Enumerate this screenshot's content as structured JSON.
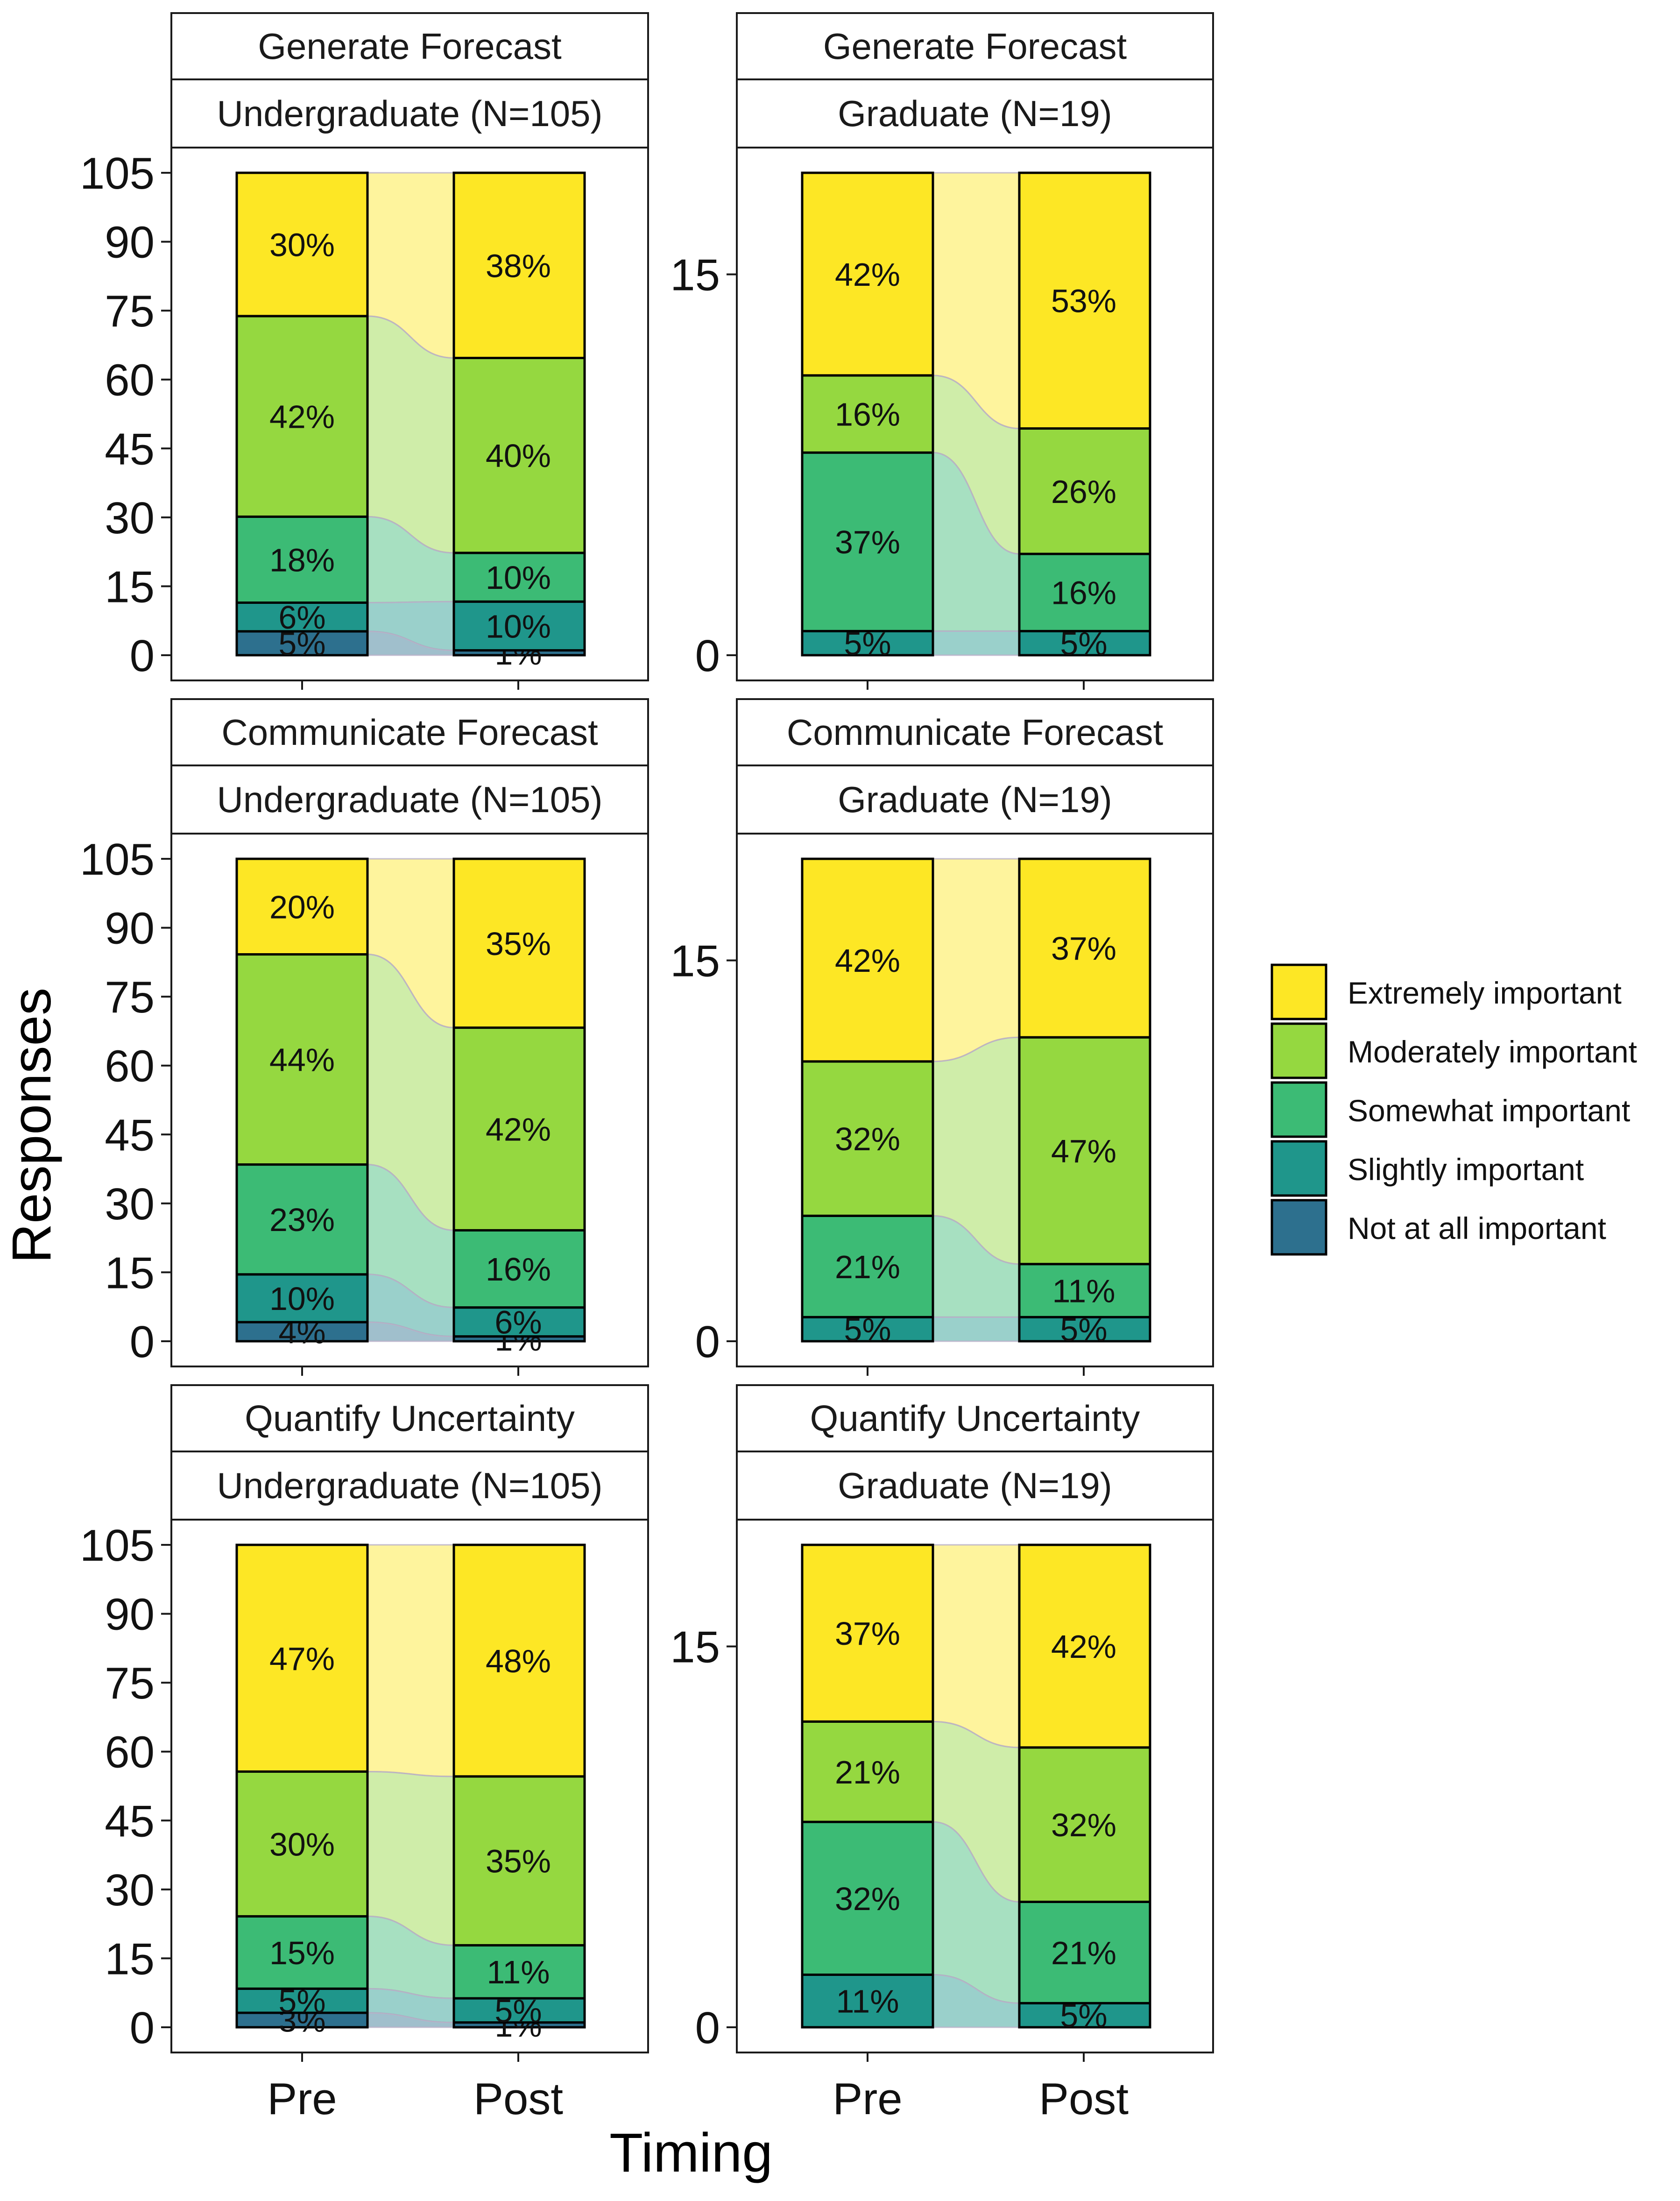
{
  "chart_data": {
    "type": "alluvial",
    "ylabel": "Responses",
    "xlabel": "Timing",
    "x_categories": [
      "Pre",
      "Post"
    ],
    "legend": {
      "placement": "right",
      "entries": [
        {
          "key": "extremely",
          "label": "Extremely important",
          "color": "#FDE725"
        },
        {
          "key": "moderately",
          "label": "Moderately important",
          "color": "#95D840"
        },
        {
          "key": "somewhat",
          "label": "Somewhat important",
          "color": "#3CBB75"
        },
        {
          "key": "slightly",
          "label": "Slightly important",
          "color": "#1F968B"
        },
        {
          "key": "notatall",
          "label": "Not at all important",
          "color": "#2D708E"
        }
      ]
    },
    "panels": [
      {
        "id": "gen-ug",
        "title": "Generate Forecast",
        "subtitle": "Undergraduate (N=105)",
        "n": 105,
        "yticks": [
          0,
          15,
          30,
          45,
          60,
          75,
          90,
          105
        ],
        "pre": [
          {
            "cat": "notatall",
            "pct": "5%"
          },
          {
            "cat": "slightly",
            "pct": "6%"
          },
          {
            "cat": "somewhat",
            "pct": "18%"
          },
          {
            "cat": "moderately",
            "pct": "42%"
          },
          {
            "cat": "extremely",
            "pct": "30%"
          }
        ],
        "post": [
          {
            "cat": "notatall",
            "pct": "1%"
          },
          {
            "cat": "slightly",
            "pct": "10%"
          },
          {
            "cat": "somewhat",
            "pct": "10%"
          },
          {
            "cat": "moderately",
            "pct": "40%"
          },
          {
            "cat": "extremely",
            "pct": "38%"
          }
        ]
      },
      {
        "id": "gen-gr",
        "title": "Generate Forecast",
        "subtitle": "Graduate (N=19)",
        "n": 19,
        "yticks": [
          0,
          15
        ],
        "pre": [
          {
            "cat": "slightly",
            "pct": "5%"
          },
          {
            "cat": "somewhat",
            "pct": "37%"
          },
          {
            "cat": "moderately",
            "pct": "16%"
          },
          {
            "cat": "extremely",
            "pct": "42%"
          }
        ],
        "post": [
          {
            "cat": "slightly",
            "pct": "5%"
          },
          {
            "cat": "somewhat",
            "pct": "16%"
          },
          {
            "cat": "moderately",
            "pct": "26%"
          },
          {
            "cat": "extremely",
            "pct": "53%"
          }
        ]
      },
      {
        "id": "com-ug",
        "title": "Communicate Forecast",
        "subtitle": "Undergraduate (N=105)",
        "n": 105,
        "yticks": [
          0,
          15,
          30,
          45,
          60,
          75,
          90,
          105
        ],
        "pre": [
          {
            "cat": "notatall",
            "pct": "4%"
          },
          {
            "cat": "slightly",
            "pct": "10%"
          },
          {
            "cat": "somewhat",
            "pct": "23%"
          },
          {
            "cat": "moderately",
            "pct": "44%"
          },
          {
            "cat": "extremely",
            "pct": "20%"
          }
        ],
        "post": [
          {
            "cat": "notatall",
            "pct": "1%"
          },
          {
            "cat": "slightly",
            "pct": "6%"
          },
          {
            "cat": "somewhat",
            "pct": "16%"
          },
          {
            "cat": "moderately",
            "pct": "42%"
          },
          {
            "cat": "extremely",
            "pct": "35%"
          }
        ]
      },
      {
        "id": "com-gr",
        "title": "Communicate Forecast",
        "subtitle": "Graduate (N=19)",
        "n": 19,
        "yticks": [
          0,
          15
        ],
        "pre": [
          {
            "cat": "slightly",
            "pct": "5%"
          },
          {
            "cat": "somewhat",
            "pct": "21%"
          },
          {
            "cat": "moderately",
            "pct": "32%"
          },
          {
            "cat": "extremely",
            "pct": "42%"
          }
        ],
        "post": [
          {
            "cat": "slightly",
            "pct": "5%"
          },
          {
            "cat": "somewhat",
            "pct": "11%"
          },
          {
            "cat": "moderately",
            "pct": "47%"
          },
          {
            "cat": "extremely",
            "pct": "37%"
          }
        ]
      },
      {
        "id": "qua-ug",
        "title": "Quantify Uncertainty",
        "subtitle": "Undergraduate (N=105)",
        "n": 105,
        "yticks": [
          0,
          15,
          30,
          45,
          60,
          75,
          90,
          105
        ],
        "pre": [
          {
            "cat": "notatall",
            "pct": "3%"
          },
          {
            "cat": "slightly",
            "pct": "5%"
          },
          {
            "cat": "somewhat",
            "pct": "15%"
          },
          {
            "cat": "moderately",
            "pct": "30%"
          },
          {
            "cat": "extremely",
            "pct": "47%"
          }
        ],
        "post": [
          {
            "cat": "notatall",
            "pct": "1%"
          },
          {
            "cat": "slightly",
            "pct": "5%"
          },
          {
            "cat": "somewhat",
            "pct": "11%"
          },
          {
            "cat": "moderately",
            "pct": "35%"
          },
          {
            "cat": "extremely",
            "pct": "48%"
          }
        ]
      },
      {
        "id": "qua-gr",
        "title": "Quantify Uncertainty",
        "subtitle": "Graduate (N=19)",
        "n": 19,
        "yticks": [
          0,
          15
        ],
        "pre": [
          {
            "cat": "slightly",
            "pct": "11%"
          },
          {
            "cat": "somewhat",
            "pct": "32%"
          },
          {
            "cat": "moderately",
            "pct": "21%"
          },
          {
            "cat": "extremely",
            "pct": "37%"
          }
        ],
        "post": [
          {
            "cat": "slightly",
            "pct": "5%"
          },
          {
            "cat": "somewhat",
            "pct": "21%"
          },
          {
            "cat": "moderately",
            "pct": "32%"
          },
          {
            "cat": "extremely",
            "pct": "42%"
          }
        ]
      }
    ]
  }
}
